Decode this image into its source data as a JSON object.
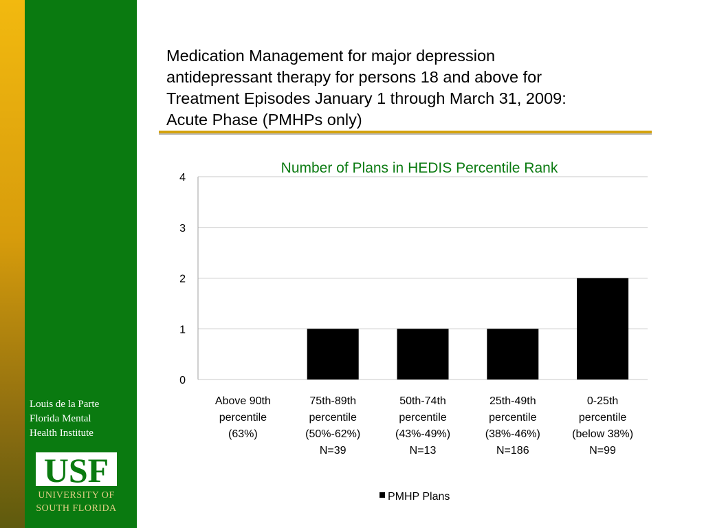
{
  "sidebar": {
    "institute_lines": [
      "Louis de la Parte",
      "Florida Mental",
      "Health Institute"
    ],
    "logo_text": "USF",
    "logo_sub": [
      "UNIVERSITY OF",
      "SOUTH FLORIDA"
    ],
    "colors": {
      "gold": "#f2b90f",
      "green": "#0a7a10"
    }
  },
  "slide": {
    "title_lines": [
      "Medication Management for major depression",
      "antidepressant therapy for persons 18 and above for",
      "Treatment Episodes January 1 through March 31, 2009:",
      "Acute Phase (PMHPs only)"
    ],
    "rule_color": "#d4a20d"
  },
  "chart_data": {
    "type": "bar",
    "title": "Number of Plans in HEDIS Percentile Rank",
    "title_color": "#0a7a10",
    "categories": [
      [
        "Above 90th",
        "percentile",
        "(63%)"
      ],
      [
        "75th-89th",
        "percentile",
        "(50%-62%)",
        "N=39"
      ],
      [
        "50th-74th",
        "percentile",
        "(43%-49%)",
        "N=13"
      ],
      [
        "25th-49th",
        "percentile",
        "(38%-46%)",
        "N=186"
      ],
      [
        "0-25th",
        "percentile",
        "(below 38%)",
        "N=99"
      ]
    ],
    "series": [
      {
        "name": "PMHP Plans",
        "values": [
          0,
          1,
          1,
          1,
          2
        ],
        "color": "#000000"
      }
    ],
    "ylim": [
      0,
      4
    ],
    "yticks": [
      "0",
      "1",
      "2",
      "3",
      "4"
    ],
    "grid": true,
    "legend_position": "bottom"
  }
}
